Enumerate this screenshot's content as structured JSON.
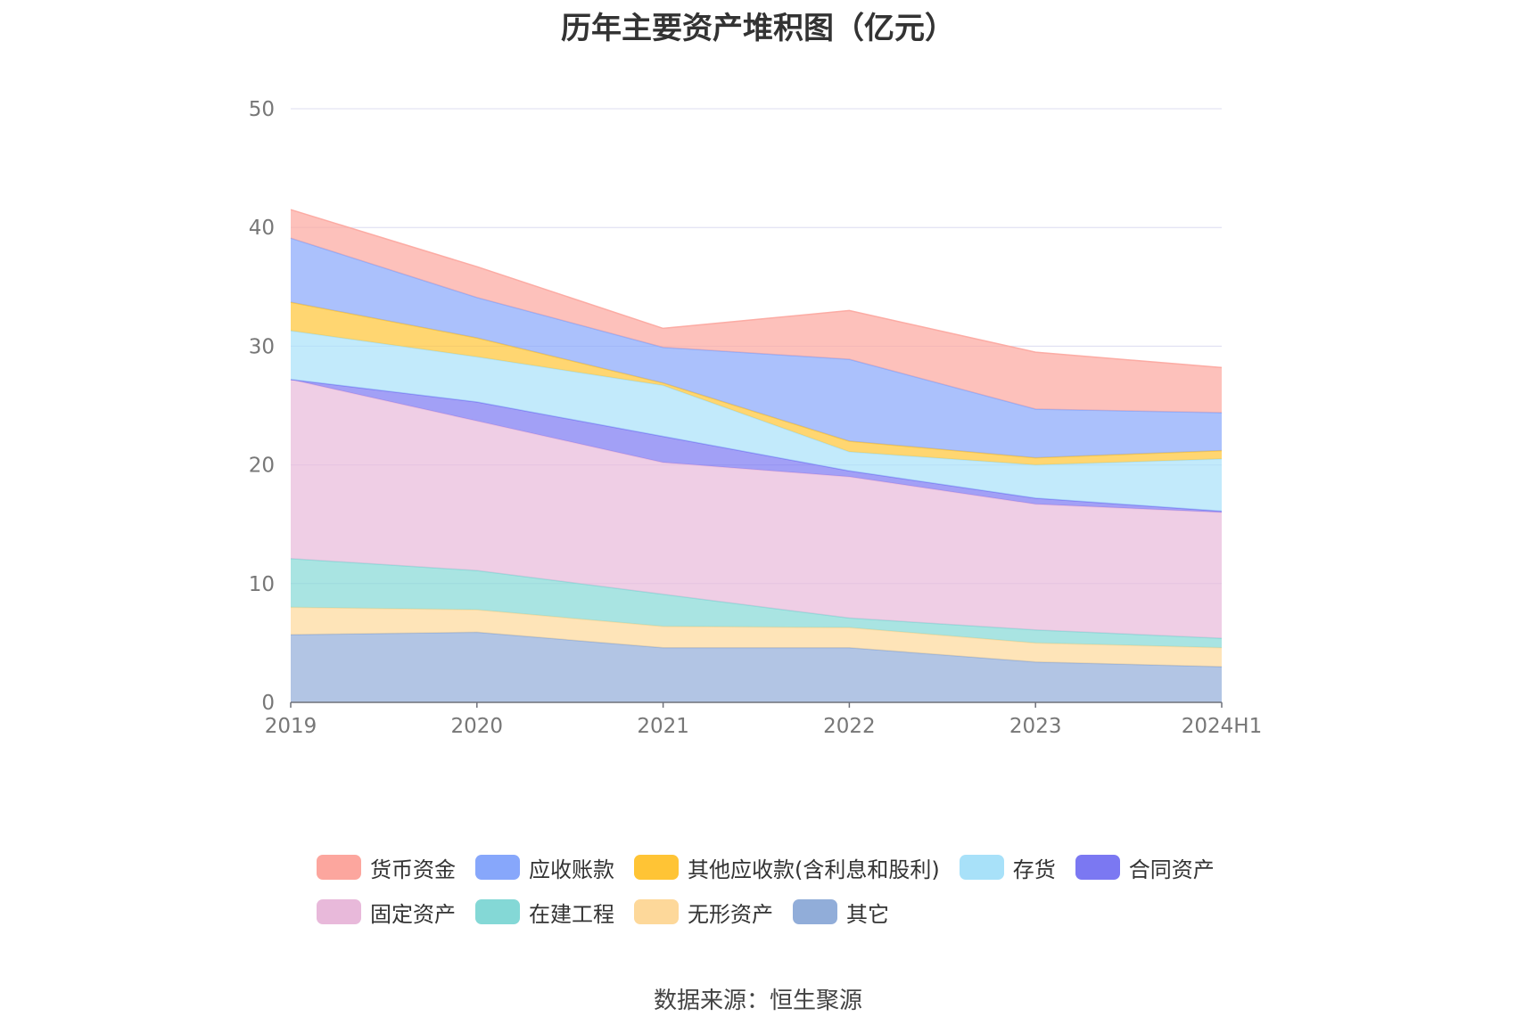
{
  "title": "历年主要资产堆积图（亿元）",
  "source": "数据来源：恒生聚源",
  "chart_data": {
    "type": "area",
    "stacked": true,
    "x": [
      "2019",
      "2020",
      "2021",
      "2022",
      "2023",
      "2024H1"
    ],
    "ylim": [
      0,
      50
    ],
    "yticks": [
      "0",
      "10",
      "20",
      "30",
      "40",
      "50"
    ],
    "grid": true,
    "legend_position": "bottom",
    "series": [
      {
        "name": "其它",
        "color": "#91add9",
        "values": [
          5.7,
          5.9,
          4.6,
          4.6,
          3.4,
          3.0
        ]
      },
      {
        "name": "无形资产",
        "color": "#fdd89a",
        "values": [
          2.3,
          1.9,
          1.8,
          1.7,
          1.6,
          1.6
        ]
      },
      {
        "name": "在建工程",
        "color": "#84d8d6",
        "values": [
          4.1,
          3.3,
          2.7,
          0.8,
          1.1,
          0.8
        ]
      },
      {
        "name": "固定资产",
        "color": "#e8b9da",
        "values": [
          15.1,
          12.6,
          11.1,
          11.9,
          10.6,
          10.6
        ]
      },
      {
        "name": "合同资产",
        "color": "#7b78f2",
        "values": [
          0.0,
          1.6,
          2.2,
          0.5,
          0.5,
          0.1
        ]
      },
      {
        "name": "存货",
        "color": "#a8e1f9",
        "values": [
          4.1,
          3.8,
          4.3,
          1.6,
          2.8,
          4.4
        ]
      },
      {
        "name": "其他应收款(含利息和股利)",
        "color": "#ffc435",
        "values": [
          2.4,
          1.6,
          0.2,
          0.9,
          0.6,
          0.7
        ]
      },
      {
        "name": "应收账款",
        "color": "#87a7fb",
        "values": [
          5.4,
          3.4,
          3.0,
          6.9,
          4.1,
          3.2
        ]
      },
      {
        "name": "货币资金",
        "color": "#fca69e",
        "values": [
          2.4,
          2.6,
          1.6,
          4.1,
          4.8,
          3.8
        ]
      }
    ]
  },
  "legend": {
    "rows": [
      [
        {
          "label": "货币资金",
          "color": "#fca69e"
        },
        {
          "label": "应收账款",
          "color": "#87a7fb"
        },
        {
          "label": "其他应收款(含利息和股利)",
          "color": "#ffc435"
        },
        {
          "label": "存货",
          "color": "#a8e1f9"
        },
        {
          "label": "合同资产",
          "color": "#7b78f2"
        }
      ],
      [
        {
          "label": "固定资产",
          "color": "#e8b9da"
        },
        {
          "label": "在建工程",
          "color": "#84d8d6"
        },
        {
          "label": "无形资产",
          "color": "#fdd89a"
        },
        {
          "label": "其它",
          "color": "#91add9"
        }
      ]
    ]
  }
}
